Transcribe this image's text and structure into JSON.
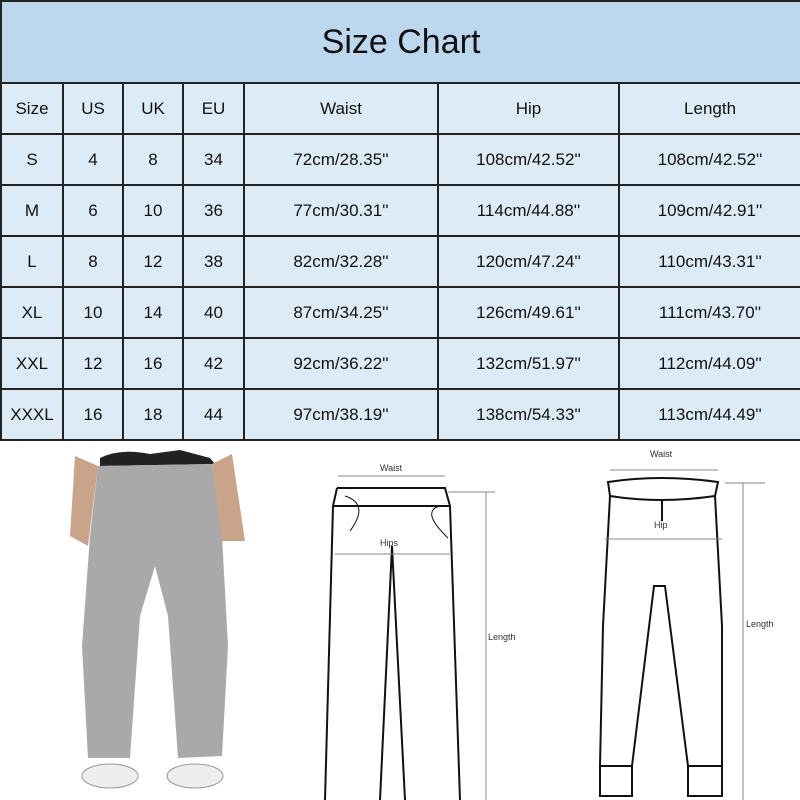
{
  "title": "Size Chart",
  "columns": [
    "Size",
    "US",
    "UK",
    "EU",
    "Waist",
    "Hip",
    "Length"
  ],
  "rows": [
    [
      "S",
      "4",
      "8",
      "34",
      "72cm/28.35''",
      "108cm/42.52''",
      "108cm/42.52''"
    ],
    [
      "M",
      "6",
      "10",
      "36",
      "77cm/30.31''",
      "114cm/44.88''",
      "109cm/42.91''"
    ],
    [
      "L",
      "8",
      "12",
      "38",
      "82cm/32.28''",
      "120cm/47.24''",
      "110cm/43.31''"
    ],
    [
      "XL",
      "10",
      "14",
      "40",
      "87cm/34.25''",
      "126cm/49.61''",
      "111cm/43.70''"
    ],
    [
      "XXL",
      "12",
      "16",
      "42",
      "92cm/36.22''",
      "132cm/51.97''",
      "112cm/44.09''"
    ],
    [
      "XXXL",
      "16",
      "18",
      "44",
      "97cm/38.19''",
      "138cm/54.33''",
      "113cm/44.49''"
    ]
  ],
  "diagram1": {
    "waist": "Waist",
    "hip": "Hips",
    "length": "Length"
  },
  "diagram2": {
    "waist": "Waist",
    "hip": "Hip",
    "length": "Length"
  },
  "colors": {
    "title_bg": "#bdd7ee",
    "cell_bg": "#ddebf7",
    "pants": "#a9a9a9"
  }
}
